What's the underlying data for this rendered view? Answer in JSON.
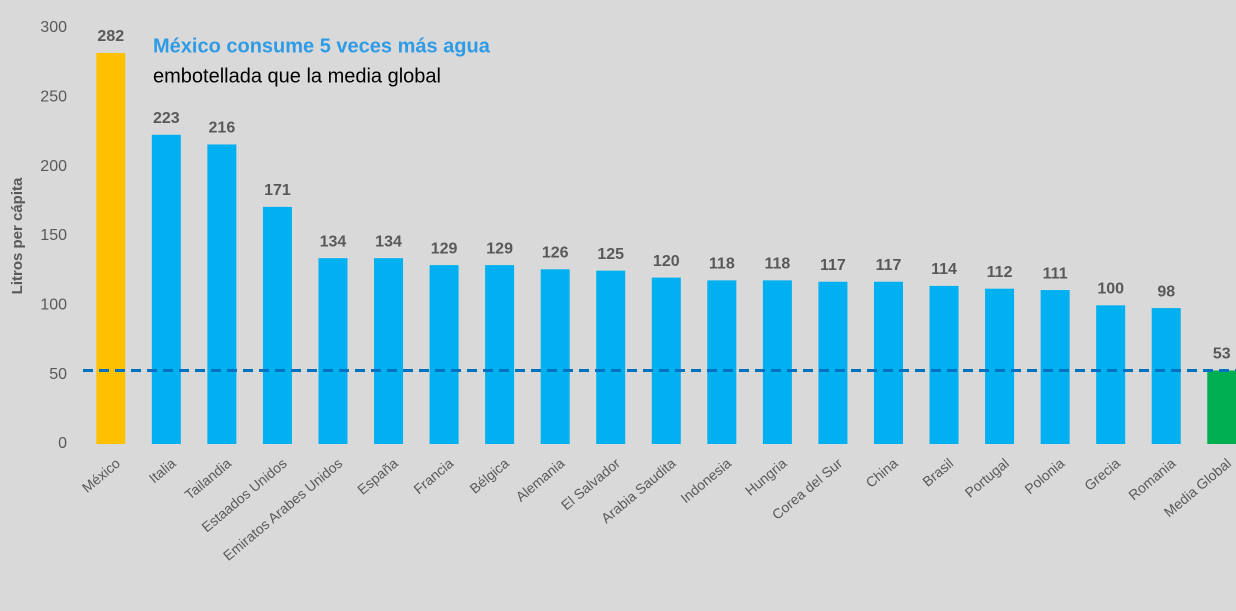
{
  "chart_data": {
    "type": "bar",
    "title": "México consume 5 veces más agua",
    "subtitle": "embotellada que la media global",
    "y_axis_label": "Litros per cápita",
    "categories": [
      "México",
      "Italia",
      "Tailandia",
      "Estaados Unidos",
      "Emiratos Arabes Unidos",
      "España",
      "Francia",
      "Bélgica",
      "Alemania",
      "El Salvador",
      "Arabia Saudita",
      "Indonesia",
      "Hungria",
      "Corea del Sur",
      "China",
      "Brasil",
      "Portugal",
      "Polonia",
      "Grecia",
      "Romania",
      "Media Global"
    ],
    "values": [
      282,
      223,
      216,
      171,
      134,
      134,
      129,
      129,
      126,
      125,
      120,
      118,
      118,
      117,
      117,
      114,
      112,
      111,
      100,
      98,
      53
    ],
    "colors": [
      "#FFC000",
      "#00B0F0",
      "#00B0F0",
      "#00B0F0",
      "#00B0F0",
      "#00B0F0",
      "#00B0F0",
      "#00B0F0",
      "#00B0F0",
      "#00B0F0",
      "#00B0F0",
      "#00B0F0",
      "#00B0F0",
      "#00B0F0",
      "#00B0F0",
      "#00B0F0",
      "#00B0F0",
      "#00B0F0",
      "#00B0F0",
      "#00B0F0",
      "#00B050"
    ],
    "reference_line": {
      "value": 53,
      "color": "#0070C0"
    },
    "ylim": [
      0,
      300
    ],
    "yticks": [
      0,
      50,
      100,
      150,
      200,
      250,
      300
    ],
    "grid": false
  }
}
